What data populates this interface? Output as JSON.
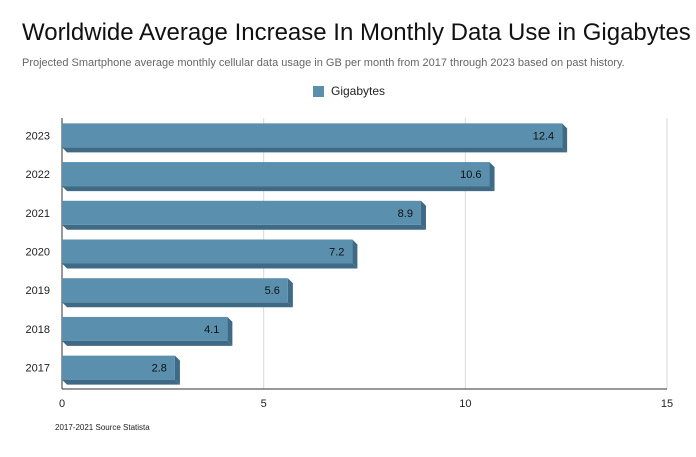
{
  "chart_data": {
    "type": "bar",
    "orientation": "horizontal",
    "title": "Worldwide Average Increase In Monthly Data Use in Gigabytes",
    "subtitle": "Projected Smartphone average monthly cellular data usage in GB per month from 2017 through 2023 based on past history.",
    "categories": [
      "2017",
      "2018",
      "2019",
      "2020",
      "2021",
      "2022",
      "2023"
    ],
    "series": [
      {
        "name": "Gigabytes",
        "values": [
          2.8,
          4.1,
          5.6,
          7.2,
          8.9,
          10.6,
          12.4
        ],
        "data_labels": [
          "2.8",
          "4.1",
          "5.6",
          "7.2",
          "8.9",
          "10.6",
          "12.4"
        ]
      }
    ],
    "x_ticks": [
      "0",
      "5",
      "10",
      "15"
    ],
    "xlim": [
      0,
      15
    ],
    "grid": true,
    "legend_position": "top",
    "bar_color": "#5b8fae",
    "bar_shadow_color": "#3e6a85",
    "source_note": "2017-2021 Source Statista"
  }
}
